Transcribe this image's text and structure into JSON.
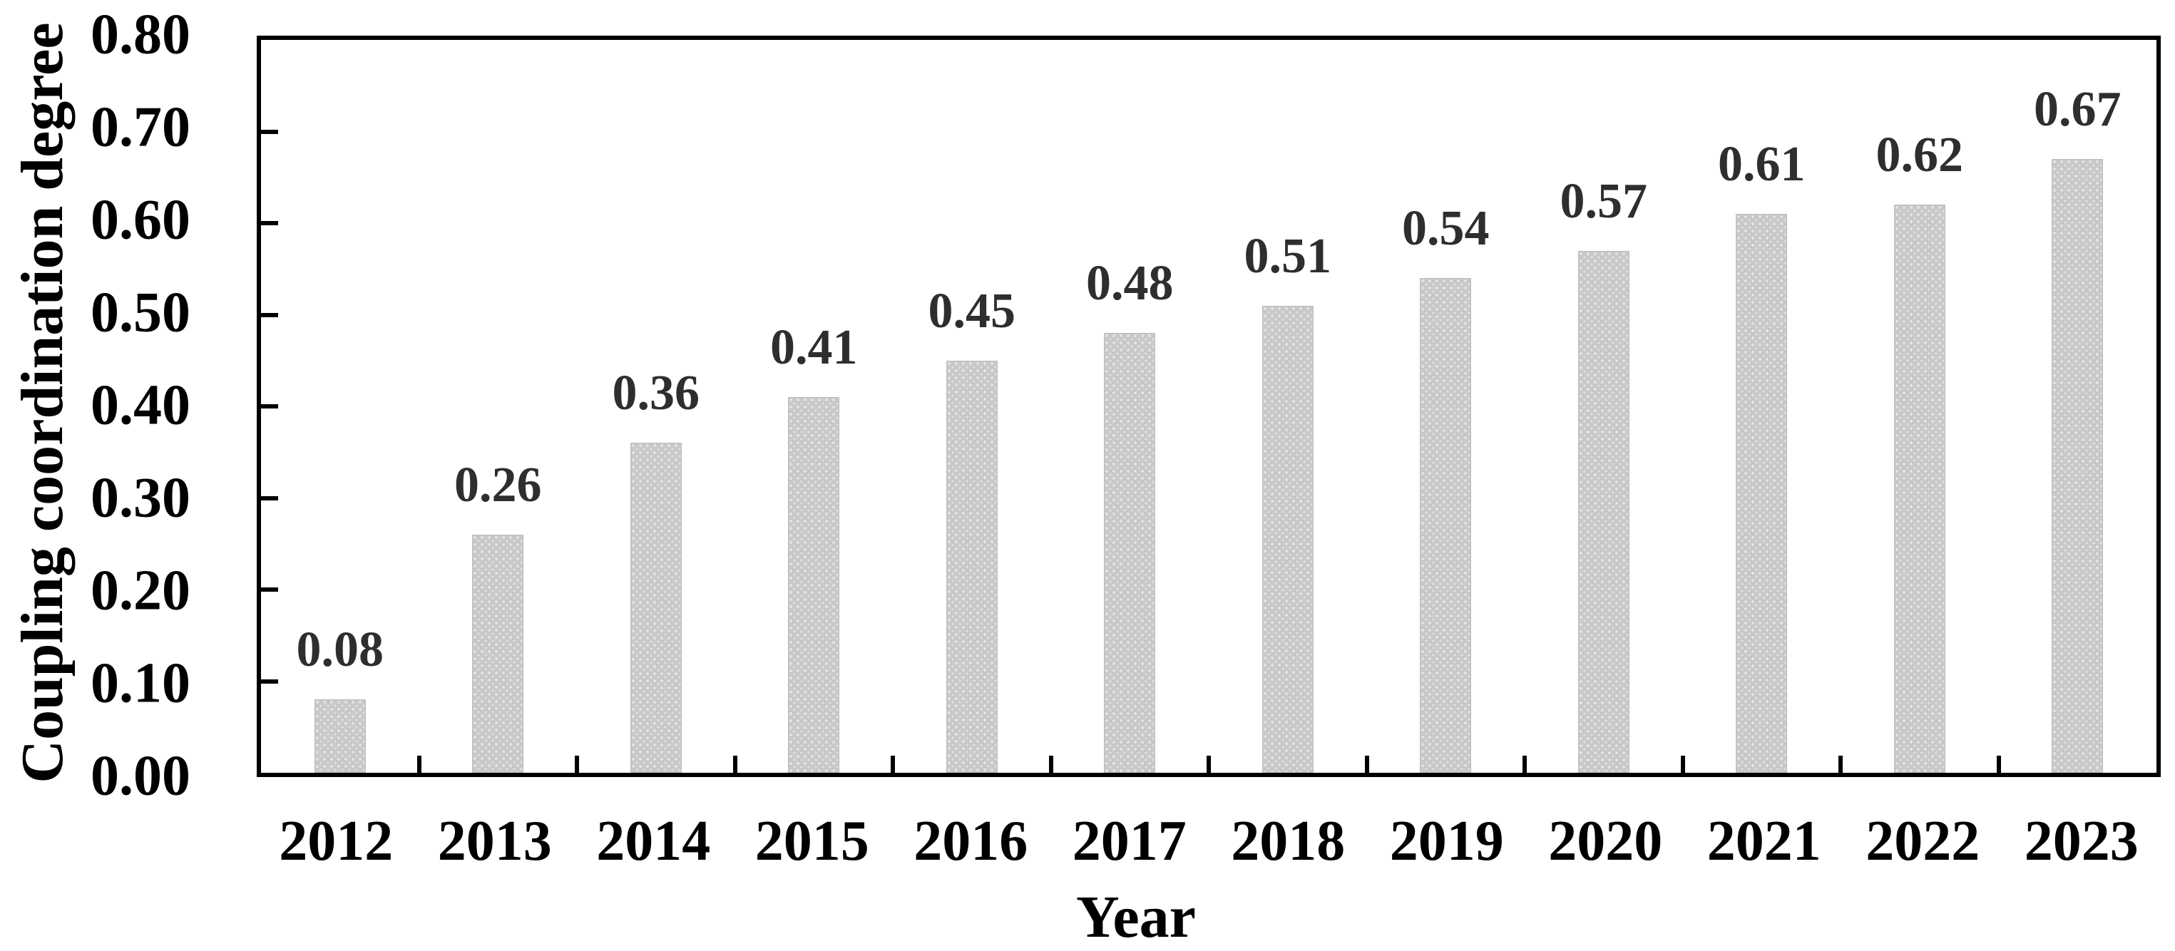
{
  "chart_data": {
    "type": "bar",
    "title": "",
    "xlabel": "Year",
    "ylabel": "Coupling coordination degree",
    "categories": [
      "2012",
      "2013",
      "2014",
      "2015",
      "2016",
      "2017",
      "2018",
      "2019",
      "2020",
      "2021",
      "2022",
      "2023"
    ],
    "values": [
      0.08,
      0.26,
      0.36,
      0.41,
      0.45,
      0.48,
      0.51,
      0.54,
      0.57,
      0.61,
      0.62,
      0.67
    ],
    "value_labels": [
      "0.08",
      "0.26",
      "0.36",
      "0.41",
      "0.45",
      "0.48",
      "0.51",
      "0.54",
      "0.57",
      "0.61",
      "0.62",
      "0.67"
    ],
    "ylim": [
      0.0,
      0.8
    ],
    "y_ticks": [
      0.0,
      0.1,
      0.2,
      0.3,
      0.4,
      0.5,
      0.6,
      0.7,
      0.8
    ],
    "y_tick_labels": [
      "0.00",
      "0.10",
      "0.20",
      "0.30",
      "0.40",
      "0.50",
      "0.60",
      "0.70",
      "0.80"
    ],
    "grid": false,
    "legend_position": "none",
    "bar_color": "#c8c8c8",
    "bar_border_color": "#bdbdbd",
    "value_label_color": "#2e2e2e",
    "axis_color": "#000000",
    "background_color": "#ffffff"
  }
}
